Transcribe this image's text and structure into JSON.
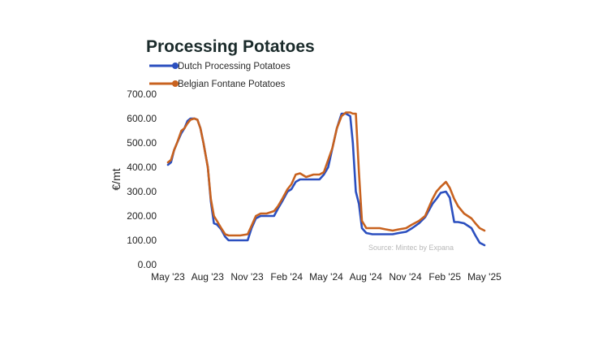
{
  "chart_data": {
    "type": "line",
    "title": "Processing Potatoes",
    "xlabel": "",
    "ylabel": "€/mt",
    "ylim": [
      0,
      700
    ],
    "yticks": [
      "0.00",
      "100.00",
      "200.00",
      "300.00",
      "400.00",
      "500.00",
      "600.00",
      "700.00"
    ],
    "xticks": [
      "May '23",
      "Aug '23",
      "Nov '23",
      "Feb '24",
      "May '24",
      "Aug '24",
      "Nov '24",
      "Feb '25",
      "May '25"
    ],
    "xlim": [
      "2023-05-01",
      "2025-05-01"
    ],
    "legend_position": "top-left",
    "grid": false,
    "annotation": "Source: Mintec by Expana",
    "colors": {
      "dutch": "#2b4fbf",
      "belgian": "#c8621f"
    },
    "series": [
      {
        "name": "Dutch Processing Potatoes",
        "points": [
          [
            "2023-05-01",
            410
          ],
          [
            "2023-05-08",
            420
          ],
          [
            "2023-05-15",
            470
          ],
          [
            "2023-05-22",
            500
          ],
          [
            "2023-06-01",
            540
          ],
          [
            "2023-06-08",
            560
          ],
          [
            "2023-06-15",
            590
          ],
          [
            "2023-06-22",
            600
          ],
          [
            "2023-07-01",
            600
          ],
          [
            "2023-07-08",
            595
          ],
          [
            "2023-07-15",
            560
          ],
          [
            "2023-07-22",
            500
          ],
          [
            "2023-08-01",
            400
          ],
          [
            "2023-08-08",
            260
          ],
          [
            "2023-08-15",
            170
          ],
          [
            "2023-08-22",
            165
          ],
          [
            "2023-09-01",
            145
          ],
          [
            "2023-09-10",
            115
          ],
          [
            "2023-09-18",
            100
          ],
          [
            "2023-10-01",
            100
          ],
          [
            "2023-10-15",
            100
          ],
          [
            "2023-11-01",
            100
          ],
          [
            "2023-11-10",
            150
          ],
          [
            "2023-11-20",
            190
          ],
          [
            "2023-12-01",
            200
          ],
          [
            "2023-12-15",
            200
          ],
          [
            "2024-01-01",
            200
          ],
          [
            "2024-01-10",
            230
          ],
          [
            "2024-01-20",
            260
          ],
          [
            "2024-02-01",
            300
          ],
          [
            "2024-02-10",
            310
          ],
          [
            "2024-02-20",
            340
          ],
          [
            "2024-03-01",
            350
          ],
          [
            "2024-03-15",
            350
          ],
          [
            "2024-04-01",
            350
          ],
          [
            "2024-04-15",
            350
          ],
          [
            "2024-04-25",
            370
          ],
          [
            "2024-05-05",
            400
          ],
          [
            "2024-05-15",
            480
          ],
          [
            "2024-05-25",
            560
          ],
          [
            "2024-06-05",
            620
          ],
          [
            "2024-06-15",
            620
          ],
          [
            "2024-06-25",
            610
          ],
          [
            "2024-07-01",
            500
          ],
          [
            "2024-07-08",
            300
          ],
          [
            "2024-07-15",
            250
          ],
          [
            "2024-07-22",
            150
          ],
          [
            "2024-08-01",
            130
          ],
          [
            "2024-08-15",
            125
          ],
          [
            "2024-09-01",
            125
          ],
          [
            "2024-09-15",
            125
          ],
          [
            "2024-10-01",
            125
          ],
          [
            "2024-10-15",
            130
          ],
          [
            "2024-11-01",
            135
          ],
          [
            "2024-11-15",
            150
          ],
          [
            "2024-12-01",
            170
          ],
          [
            "2024-12-15",
            195
          ],
          [
            "2025-01-01",
            250
          ],
          [
            "2025-01-10",
            270
          ],
          [
            "2025-01-20",
            295
          ],
          [
            "2025-02-01",
            300
          ],
          [
            "2025-02-10",
            275
          ],
          [
            "2025-02-20",
            175
          ],
          [
            "2025-03-01",
            175
          ],
          [
            "2025-03-15",
            170
          ],
          [
            "2025-04-01",
            150
          ],
          [
            "2025-04-10",
            120
          ],
          [
            "2025-04-20",
            90
          ],
          [
            "2025-05-01",
            80
          ]
        ]
      },
      {
        "name": "Belgian Fontane Potatoes",
        "points": [
          [
            "2023-05-01",
            420
          ],
          [
            "2023-05-08",
            430
          ],
          [
            "2023-05-15",
            470
          ],
          [
            "2023-05-22",
            500
          ],
          [
            "2023-06-01",
            550
          ],
          [
            "2023-06-08",
            560
          ],
          [
            "2023-06-15",
            580
          ],
          [
            "2023-06-22",
            595
          ],
          [
            "2023-07-01",
            600
          ],
          [
            "2023-07-08",
            595
          ],
          [
            "2023-07-15",
            560
          ],
          [
            "2023-07-22",
            500
          ],
          [
            "2023-08-01",
            400
          ],
          [
            "2023-08-08",
            270
          ],
          [
            "2023-08-15",
            200
          ],
          [
            "2023-08-22",
            180
          ],
          [
            "2023-09-01",
            150
          ],
          [
            "2023-09-10",
            125
          ],
          [
            "2023-09-18",
            120
          ],
          [
            "2023-10-01",
            120
          ],
          [
            "2023-10-15",
            120
          ],
          [
            "2023-11-01",
            125
          ],
          [
            "2023-11-10",
            160
          ],
          [
            "2023-11-20",
            200
          ],
          [
            "2023-12-01",
            210
          ],
          [
            "2023-12-15",
            210
          ],
          [
            "2024-01-01",
            220
          ],
          [
            "2024-01-10",
            240
          ],
          [
            "2024-01-20",
            270
          ],
          [
            "2024-02-01",
            310
          ],
          [
            "2024-02-10",
            330
          ],
          [
            "2024-02-20",
            370
          ],
          [
            "2024-03-01",
            375
          ],
          [
            "2024-03-15",
            360
          ],
          [
            "2024-04-01",
            370
          ],
          [
            "2024-04-15",
            370
          ],
          [
            "2024-04-25",
            380
          ],
          [
            "2024-05-05",
            430
          ],
          [
            "2024-05-15",
            480
          ],
          [
            "2024-05-25",
            560
          ],
          [
            "2024-06-05",
            610
          ],
          [
            "2024-06-15",
            625
          ],
          [
            "2024-06-25",
            625
          ],
          [
            "2024-07-01",
            620
          ],
          [
            "2024-07-08",
            620
          ],
          [
            "2024-07-15",
            380
          ],
          [
            "2024-07-22",
            180
          ],
          [
            "2024-08-01",
            150
          ],
          [
            "2024-08-15",
            150
          ],
          [
            "2024-09-01",
            150
          ],
          [
            "2024-09-15",
            145
          ],
          [
            "2024-10-01",
            140
          ],
          [
            "2024-10-15",
            145
          ],
          [
            "2024-11-01",
            150
          ],
          [
            "2024-11-15",
            165
          ],
          [
            "2024-12-01",
            180
          ],
          [
            "2024-12-15",
            200
          ],
          [
            "2025-01-01",
            270
          ],
          [
            "2025-01-10",
            300
          ],
          [
            "2025-01-20",
            320
          ],
          [
            "2025-02-01",
            340
          ],
          [
            "2025-02-10",
            315
          ],
          [
            "2025-02-20",
            270
          ],
          [
            "2025-03-01",
            240
          ],
          [
            "2025-03-15",
            210
          ],
          [
            "2025-04-01",
            190
          ],
          [
            "2025-04-10",
            170
          ],
          [
            "2025-04-20",
            150
          ],
          [
            "2025-05-01",
            140
          ]
        ]
      }
    ]
  }
}
